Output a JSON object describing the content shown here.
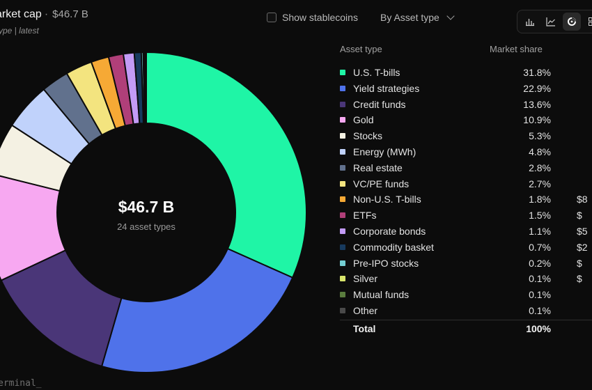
{
  "header": {
    "title": "arket cap",
    "value": "$46.7 B",
    "subtitle": "ype | latest"
  },
  "controls": {
    "stablecoins_label": "Show stablecoins",
    "groupby_label": "By Asset type"
  },
  "view_toggle": {
    "icons": [
      "bar-chart-icon",
      "line-chart-icon",
      "donut-chart-icon",
      "grid-icon"
    ],
    "active": "donut-chart-icon"
  },
  "center": {
    "value": "$46.7 B",
    "label": "24 asset types"
  },
  "legend": {
    "col_asset": "Asset type",
    "col_share": "Market share",
    "rows": [
      {
        "name": "U.S. T-bills",
        "share": "31.8%",
        "mcap": "",
        "color": "#1ff5a6"
      },
      {
        "name": "Yield strategies",
        "share": "22.9%",
        "mcap": "",
        "color": "#4f72ea"
      },
      {
        "name": "Credit funds",
        "share": "13.6%",
        "mcap": "",
        "color": "#4a3678"
      },
      {
        "name": "Gold",
        "share": "10.9%",
        "mcap": "",
        "color": "#f7a8f1"
      },
      {
        "name": "Stocks",
        "share": "5.3%",
        "mcap": "",
        "color": "#f4f1e3"
      },
      {
        "name": "Energy (MWh)",
        "share": "4.8%",
        "mcap": "",
        "color": "#c0d2fb"
      },
      {
        "name": "Real estate",
        "share": "2.8%",
        "mcap": "",
        "color": "#61718d"
      },
      {
        "name": "VC/PE funds",
        "share": "2.7%",
        "mcap": "",
        "color": "#f3e47f"
      },
      {
        "name": "Non-U.S. T-bills",
        "share": "1.8%",
        "mcap": "$8",
        "color": "#f6a935"
      },
      {
        "name": "ETFs",
        "share": "1.5%",
        "mcap": "$",
        "color": "#b03f79"
      },
      {
        "name": "Corporate bonds",
        "share": "1.1%",
        "mcap": "$5",
        "color": "#c39bf6"
      },
      {
        "name": "Commodity basket",
        "share": "0.7%",
        "mcap": "$2",
        "color": "#173a5e"
      },
      {
        "name": "Pre-IPO stocks",
        "share": "0.2%",
        "mcap": "$",
        "color": "#74ced2"
      },
      {
        "name": "Silver",
        "share": "0.1%",
        "mcap": "$",
        "color": "#d8e56c"
      },
      {
        "name": "Mutual funds",
        "share": "0.1%",
        "mcap": "",
        "color": "#5a7c3e"
      },
      {
        "name": "Other",
        "share": "0.1%",
        "mcap": "",
        "color": "#4a4a4a"
      }
    ],
    "total": {
      "name": "Total",
      "share": "100%"
    }
  },
  "chart_data": {
    "type": "pie",
    "total_label": "$46.7 B",
    "slices": [
      {
        "name": "U.S. T-bills",
        "value": 31.8,
        "color": "#1ff5a6"
      },
      {
        "name": "Yield strategies",
        "value": 22.9,
        "color": "#4f72ea"
      },
      {
        "name": "Credit funds",
        "value": 13.6,
        "color": "#4a3678"
      },
      {
        "name": "Gold",
        "value": 10.9,
        "color": "#f7a8f1"
      },
      {
        "name": "Stocks",
        "value": 5.3,
        "color": "#f4f1e3"
      },
      {
        "name": "Energy (MWh)",
        "value": 4.8,
        "color": "#c0d2fb"
      },
      {
        "name": "Real estate",
        "value": 2.8,
        "color": "#61718d"
      },
      {
        "name": "VC/PE funds",
        "value": 2.7,
        "color": "#f3e47f"
      },
      {
        "name": "Non-U.S. T-bills",
        "value": 1.8,
        "color": "#f6a935"
      },
      {
        "name": "ETFs",
        "value": 1.5,
        "color": "#b03f79"
      },
      {
        "name": "Corporate bonds",
        "value": 1.1,
        "color": "#c39bf6"
      },
      {
        "name": "Commodity basket",
        "value": 0.7,
        "color": "#173a5e"
      },
      {
        "name": "Pre-IPO stocks",
        "value": 0.2,
        "color": "#74ced2"
      },
      {
        "name": "Silver",
        "value": 0.1,
        "color": "#d8e56c"
      },
      {
        "name": "Mutual funds",
        "value": 0.1,
        "color": "#5a7c3e"
      },
      {
        "name": "Other",
        "value": 0.1,
        "color": "#4a4a4a"
      }
    ]
  },
  "watermark": "erminal_"
}
